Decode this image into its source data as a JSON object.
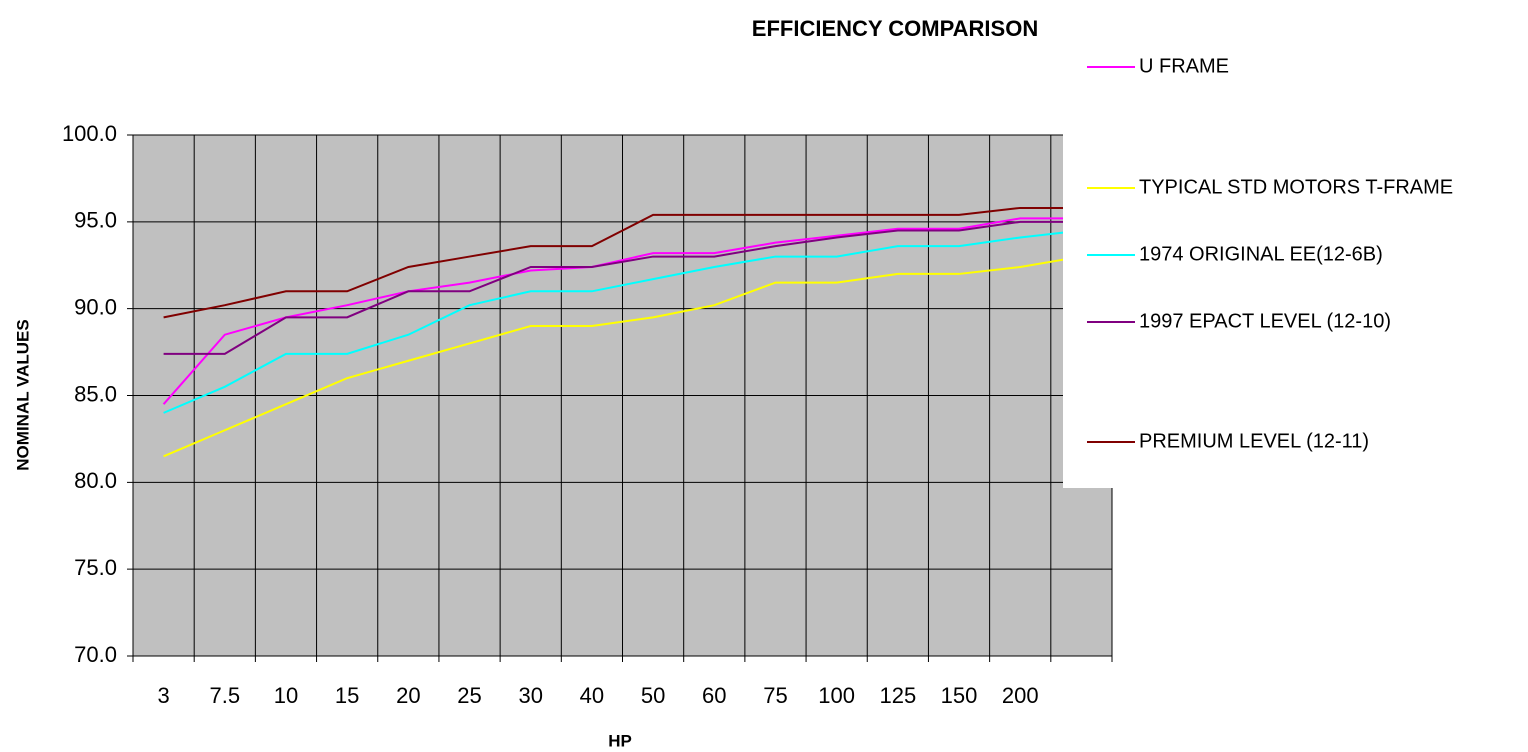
{
  "chart_data": {
    "type": "line",
    "title": "EFFICIENCY COMPARISON",
    "x_label": "HP",
    "y_label": "NOMINAL VALUES",
    "categories": [
      "3",
      "7.5",
      "10",
      "15",
      "20",
      "25",
      "30",
      "40",
      "50",
      "60",
      "75",
      "100",
      "125",
      "150",
      "200",
      null
    ],
    "series": [
      {
        "name": "U FRAME",
        "color": "#ff00ff",
        "values": [
          84.5,
          88.5,
          89.5,
          90.2,
          91.0,
          91.5,
          92.2,
          92.4,
          93.2,
          93.2,
          93.8,
          94.2,
          94.6,
          94.6,
          95.2,
          95.2
        ]
      },
      {
        "name": "TYPICAL STD MOTORS T-FRAME",
        "color": "#ffff00",
        "values": [
          81.5,
          83.0,
          84.5,
          86.0,
          87.0,
          88.0,
          89.0,
          89.0,
          89.5,
          90.2,
          91.5,
          91.5,
          92.0,
          92.0,
          92.4,
          93.0
        ]
      },
      {
        "name": "1974 ORIGINAL EE(12-6B)",
        "color": "#00ffff",
        "values": [
          84.0,
          85.5,
          87.4,
          87.4,
          88.5,
          90.2,
          91.0,
          91.0,
          91.7,
          92.4,
          93.0,
          93.0,
          93.6,
          93.6,
          94.1,
          94.5
        ]
      },
      {
        "name": "1997 EPACT LEVEL (12-10)",
        "color": "#800080",
        "values": [
          87.4,
          87.4,
          89.5,
          89.5,
          91.0,
          91.0,
          92.4,
          92.4,
          93.0,
          93.0,
          93.6,
          94.1,
          94.5,
          94.5,
          95.0,
          95.0
        ]
      },
      {
        "name": "PREMIUM LEVEL (12-11)",
        "color": "#800000",
        "values": [
          89.5,
          90.2,
          91.0,
          91.0,
          92.4,
          93.0,
          93.6,
          93.6,
          95.4,
          95.4,
          95.4,
          95.4,
          95.4,
          95.4,
          95.8,
          95.8
        ]
      }
    ],
    "ylim": [
      70,
      100
    ],
    "yticks": [
      {
        "value": 70,
        "label": "70.0"
      },
      {
        "value": 75,
        "label": "75.0"
      },
      {
        "value": 80,
        "label": "80.0"
      },
      {
        "value": 85,
        "label": "85.0"
      },
      {
        "value": 90,
        "label": "90.0"
      },
      {
        "value": 95,
        "label": "95.0"
      },
      {
        "value": 100,
        "label": "100.0"
      }
    ],
    "grid": true,
    "plot_background": "#c0c0c0",
    "legend": "right"
  }
}
